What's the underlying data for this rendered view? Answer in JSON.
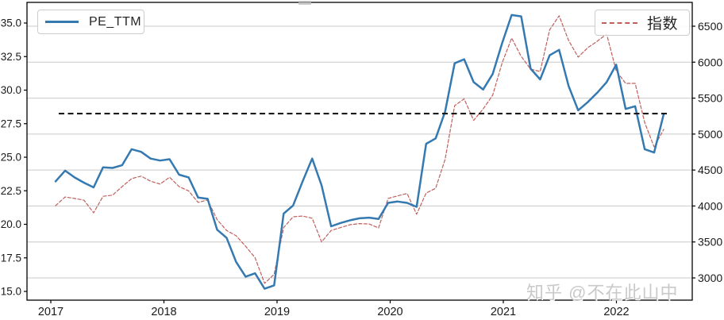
{
  "watermark": "知乎 @不在此山中",
  "legend": {
    "pe": "PE_TTM",
    "index": "指数"
  },
  "colors": {
    "pe_line": "#3579b1",
    "index_line": "#c0605c",
    "mean_line": "#1a1a1a",
    "grid": "#c9c9c9",
    "spine": "#000000",
    "tick_text": "#1a1a1a",
    "watermark": "#c9c9c9"
  },
  "chart_data": {
    "type": "line",
    "frequency": "monthly",
    "start": "2017-01",
    "end": "2022-05",
    "x_tick_labels": [
      "2017",
      "2018",
      "2019",
      "2020",
      "2021",
      "2022"
    ],
    "left_axis": {
      "label": "PE_TTM",
      "tick_labels": [
        "15.0",
        "17.5",
        "20.0",
        "22.5",
        "25.0",
        "27.5",
        "30.0",
        "32.5",
        "35.0"
      ],
      "range": [
        14.3,
        36.5
      ]
    },
    "right_axis": {
      "label": "指数",
      "tick_labels": [
        "3000",
        "3500",
        "4000",
        "4500",
        "5000",
        "5500",
        "6000",
        "6500"
      ],
      "range": [
        2690,
        6830
      ]
    },
    "grid": "horizontal gridlines aligned to right-axis ticks",
    "legend_position": [
      "upper left",
      "upper right"
    ],
    "mean_line": {
      "value": 28.25,
      "axis": "left",
      "style": "dashed"
    },
    "series": [
      {
        "name": "PE_TTM",
        "axis": "left",
        "style": "solid",
        "color": "#3579b1",
        "values": [
          23.2,
          24.0,
          23.5,
          23.1,
          22.75,
          24.25,
          24.2,
          24.4,
          25.6,
          25.4,
          24.9,
          24.75,
          24.85,
          23.7,
          23.5,
          22.0,
          21.9,
          19.6,
          19.0,
          17.2,
          16.1,
          16.35,
          15.2,
          15.45,
          20.8,
          21.4,
          23.2,
          24.9,
          22.9,
          19.85,
          20.1,
          20.3,
          20.45,
          20.5,
          20.4,
          21.6,
          21.7,
          21.6,
          21.3,
          26.0,
          26.4,
          28.4,
          32.0,
          32.3,
          30.6,
          30.05,
          31.2,
          33.5,
          35.6,
          35.5,
          31.6,
          30.8,
          32.6,
          33.0,
          30.3,
          28.5,
          29.1,
          29.8,
          30.6,
          31.9,
          28.6,
          28.8,
          25.6,
          25.35,
          28.2
        ]
      },
      {
        "name": "指数",
        "axis": "right",
        "style": "dashed",
        "color": "#c0605c",
        "values": [
          4005,
          4125,
          4105,
          4080,
          3905,
          4135,
          4150,
          4270,
          4380,
          4415,
          4345,
          4305,
          4400,
          4270,
          4210,
          4050,
          4083,
          3810,
          3660,
          3586,
          3440,
          3280,
          2925,
          3050,
          3700,
          3850,
          3860,
          3830,
          3500,
          3660,
          3700,
          3740,
          3755,
          3750,
          3696,
          4105,
          4140,
          4175,
          3885,
          4180,
          4247,
          4650,
          5395,
          5490,
          5190,
          5350,
          5540,
          5990,
          6334,
          6080,
          5904,
          5870,
          6450,
          6645,
          6300,
          6070,
          6200,
          6290,
          6390,
          5880,
          5705,
          5705,
          5160,
          4822,
          5065
        ]
      }
    ]
  }
}
